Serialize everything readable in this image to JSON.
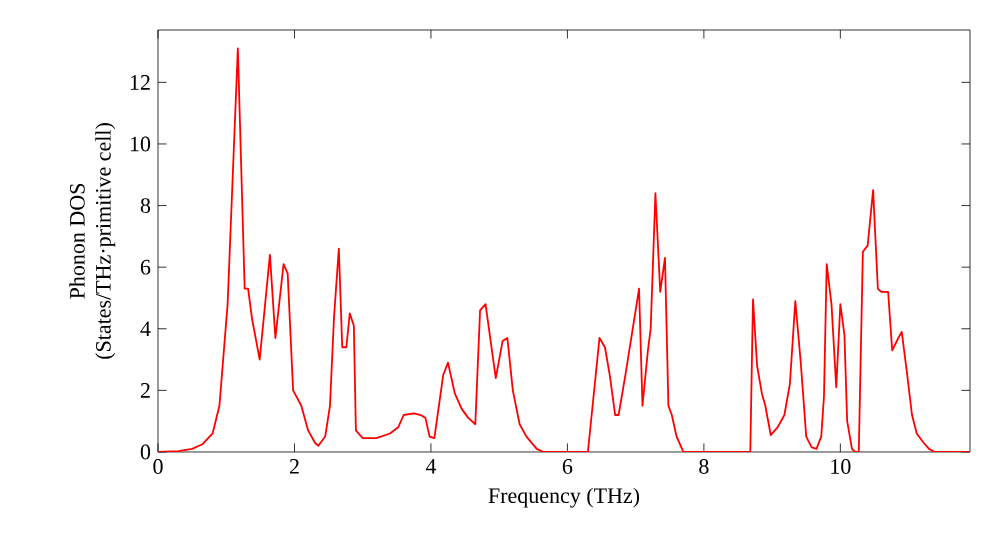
{
  "chart_data": {
    "type": "line",
    "xlabel": "Frequency (THz)",
    "ylabel": "Phonon DOS\n(States/THz·primitive cell)",
    "xlim": [
      0,
      11.9
    ],
    "ylim": [
      0,
      13.7
    ],
    "xticks": [
      0,
      2,
      4,
      6,
      8,
      10
    ],
    "yticks": [
      0,
      2,
      4,
      6,
      8,
      10,
      12
    ],
    "grid": false,
    "marker": "none",
    "line_style": "solid",
    "x": [
      0,
      0.3,
      0.5,
      0.65,
      0.8,
      0.9,
      1.02,
      1.17,
      1.27,
      1.32,
      1.38,
      1.49,
      1.64,
      1.72,
      1.84,
      1.9,
      1.98,
      2.1,
      2.2,
      2.3,
      2.35,
      2.45,
      2.52,
      2.58,
      2.65,
      2.7,
      2.76,
      2.81,
      2.87,
      2.9,
      3.0,
      3.2,
      3.4,
      3.52,
      3.6,
      3.75,
      3.85,
      3.92,
      3.98,
      4.05,
      4.18,
      4.25,
      4.35,
      4.45,
      4.55,
      4.65,
      4.72,
      4.8,
      4.95,
      5.05,
      5.12,
      5.2,
      5.3,
      5.4,
      5.55,
      5.65,
      6.3,
      6.47,
      6.55,
      6.62,
      6.7,
      6.75,
      6.85,
      6.95,
      7.05,
      7.1,
      7.18,
      7.22,
      7.29,
      7.36,
      7.43,
      7.48,
      7.53,
      7.6,
      7.7,
      8.68,
      8.72,
      8.78,
      8.85,
      8.9,
      8.98,
      9.08,
      9.18,
      9.26,
      9.34,
      9.42,
      9.5,
      9.58,
      9.65,
      9.72,
      9.76,
      9.8,
      9.87,
      9.94,
      10.0,
      10.06,
      10.1,
      10.17,
      10.22,
      10.27,
      10.33,
      10.4,
      10.48,
      10.55,
      10.6,
      10.7,
      10.76,
      10.85,
      10.9,
      10.98,
      11.05,
      11.12,
      11.22,
      11.3,
      11.38,
      11.9
    ],
    "series": [
      {
        "color": "#ff0000",
        "values": [
          0,
          0.03,
          0.1,
          0.25,
          0.6,
          1.5,
          4.8,
          13.1,
          5.3,
          5.3,
          4.3,
          3.0,
          6.4,
          3.7,
          6.1,
          5.8,
          2.0,
          1.5,
          0.7,
          0.3,
          0.2,
          0.5,
          1.5,
          4.4,
          6.6,
          3.4,
          3.4,
          4.5,
          4.1,
          0.7,
          0.45,
          0.45,
          0.6,
          0.8,
          1.2,
          1.25,
          1.2,
          1.1,
          0.5,
          0.45,
          2.5,
          2.9,
          1.9,
          1.4,
          1.1,
          0.9,
          4.6,
          4.8,
          2.4,
          3.6,
          3.7,
          2.0,
          0.9,
          0.5,
          0.1,
          0,
          0,
          3.7,
          3.4,
          2.5,
          1.2,
          1.2,
          2.5,
          3.9,
          5.3,
          1.5,
          3.3,
          4.0,
          8.4,
          5.2,
          6.3,
          1.5,
          1.2,
          0.5,
          0,
          0,
          4.95,
          2.8,
          1.9,
          1.5,
          0.55,
          0.8,
          1.2,
          2.2,
          4.9,
          2.9,
          0.5,
          0.15,
          0.1,
          0.5,
          1.8,
          6.1,
          4.8,
          2.1,
          4.8,
          3.8,
          1.0,
          0.1,
          0,
          0,
          6.5,
          6.7,
          8.5,
          5.3,
          5.2,
          5.2,
          3.3,
          3.7,
          3.9,
          2.5,
          1.2,
          0.6,
          0.3,
          0.1,
          0,
          0
        ]
      }
    ]
  }
}
